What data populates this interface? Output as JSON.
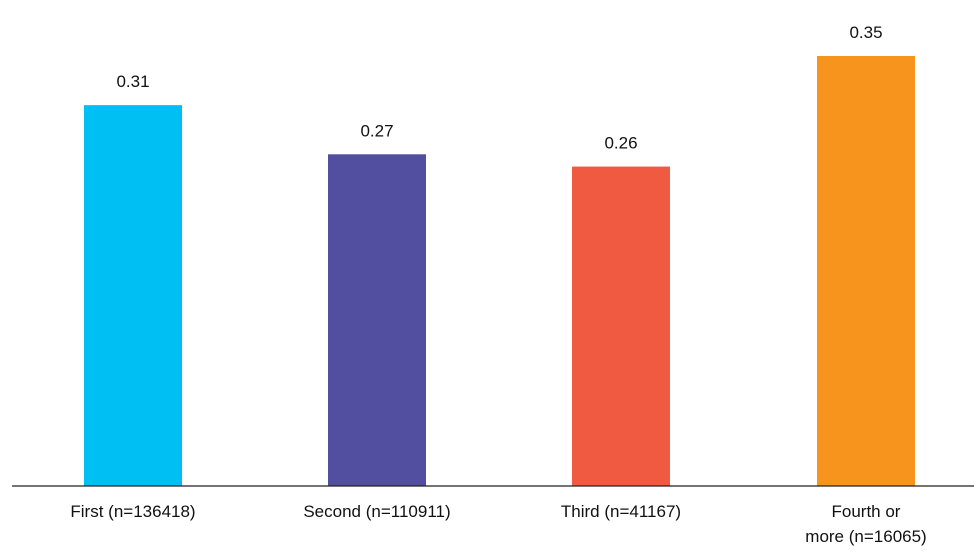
{
  "chart_data": {
    "type": "bar",
    "categories": [
      "First (n=136418)",
      "Second (n=110911)",
      "Third (n=41167)",
      "Fourth or more (n=16065)"
    ],
    "category_lines": [
      [
        "First (n=136418)"
      ],
      [
        "Second (n=110911)"
      ],
      [
        "Third (n=41167)"
      ],
      [
        "Fourth or",
        "more (n=16065)"
      ]
    ],
    "values": [
      0.31,
      0.27,
      0.26,
      0.35
    ],
    "value_labels": [
      "0.31",
      "0.27",
      "0.26",
      "0.35"
    ],
    "colors": [
      "#00BFF3",
      "#524FA1",
      "#F05A40",
      "#F7941D"
    ],
    "title": "",
    "xlabel": "",
    "ylabel": "",
    "ylim": [
      0,
      0.35
    ],
    "grid": false,
    "legend": "none"
  }
}
